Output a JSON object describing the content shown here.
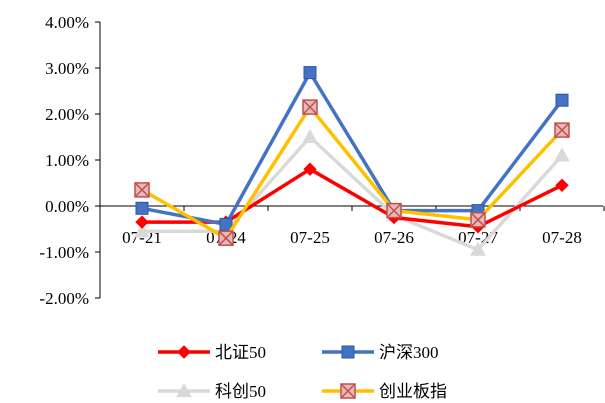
{
  "chart_data": {
    "type": "line",
    "categories": [
      "07-21",
      "07-24",
      "07-25",
      "07-26",
      "07-27",
      "07-28"
    ],
    "y_ticks": [
      "4.00%",
      "3.00%",
      "2.00%",
      "1.00%",
      "0.00%",
      "-1.00%",
      "-2.00%"
    ],
    "ylim": [
      -2,
      4
    ],
    "y_unit": "%",
    "grid": false,
    "legend_position": "bottom",
    "series": [
      {
        "name": "科创50",
        "color": "#d9d9d9",
        "marker": "triangle",
        "values": [
          -0.55,
          -0.55,
          1.5,
          -0.2,
          -0.95,
          1.1
        ]
      },
      {
        "name": "北证50",
        "color": "#ff0000",
        "marker": "diamond",
        "values": [
          -0.35,
          -0.35,
          0.8,
          -0.25,
          -0.45,
          0.45
        ]
      },
      {
        "name": "沪深300",
        "color": "#4472c4",
        "marker": "square",
        "values": [
          -0.05,
          -0.4,
          2.9,
          -0.1,
          -0.1,
          2.3
        ]
      },
      {
        "name": "创业板指",
        "color": "#ffc000",
        "marker": "xbox",
        "marker_fill": "#c0504d",
        "values": [
          0.35,
          -0.7,
          2.15,
          -0.1,
          -0.3,
          1.65
        ]
      }
    ],
    "legend_order": [
      1,
      2,
      0,
      3
    ]
  }
}
